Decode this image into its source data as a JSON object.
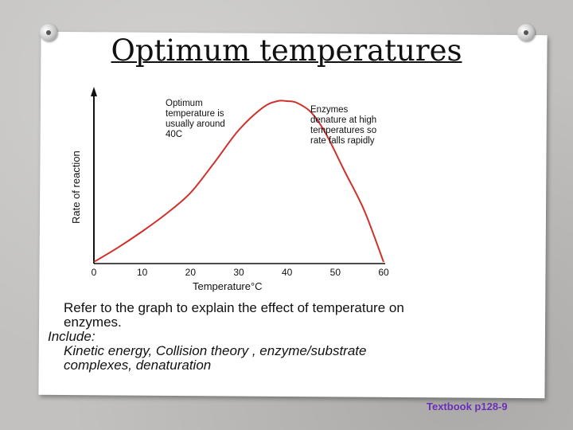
{
  "slide": {
    "title": "Optimum temperatures",
    "body_line1": "Refer to the graph to explain the effect of temperature on",
    "body_line2": "enzymes.",
    "include_label": "Include:",
    "include_line1": "Kinetic energy, Collision theory , enzyme/substrate",
    "include_line2": "complexes, denaturation",
    "reference": "Textbook p128-9"
  },
  "chart_data": {
    "type": "line",
    "xlabel": "Temperature°C",
    "ylabel": "Rate of reaction",
    "xlim": [
      0,
      60
    ],
    "x_ticks": [
      "0",
      "10",
      "20",
      "30",
      "40",
      "50",
      "60"
    ],
    "annotations": [
      [
        "Optimum",
        "temperature is",
        "usually around",
        "40C"
      ],
      [
        "Enzymes",
        "denature at high",
        "temperatures so",
        "rate falls rapidly"
      ]
    ],
    "series": [
      {
        "color": "#d0302a",
        "x": [
          0,
          5,
          10,
          15,
          20,
          25,
          30,
          35,
          38,
          40,
          42,
          45,
          48,
          52,
          56,
          60
        ],
        "y": [
          0,
          0.09,
          0.19,
          0.3,
          0.43,
          0.62,
          0.82,
          0.96,
          1.0,
          1.0,
          0.99,
          0.93,
          0.8,
          0.56,
          0.32,
          0.0
        ]
      }
    ]
  }
}
